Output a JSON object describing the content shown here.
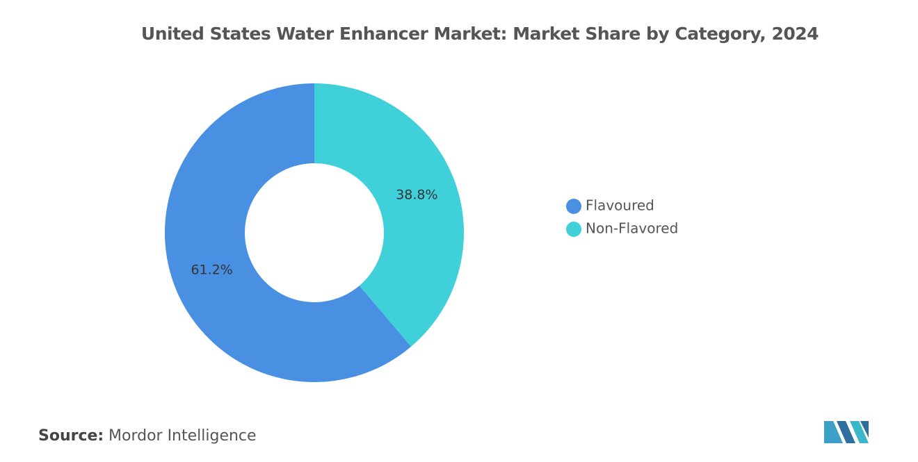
{
  "chart_data": {
    "type": "donut",
    "title": "United States Water Enhancer Market: Market Share by Category, 2024",
    "categories": [
      "Flavoured",
      "Non-Flavored"
    ],
    "values": [
      61.2,
      38.8
    ],
    "value_labels": [
      "61.2%",
      "38.8%"
    ],
    "colors": [
      "#4a90e2",
      "#40d0da"
    ],
    "legend": "right"
  },
  "source": {
    "label": "Source:",
    "text": "Mordor Intelligence"
  }
}
